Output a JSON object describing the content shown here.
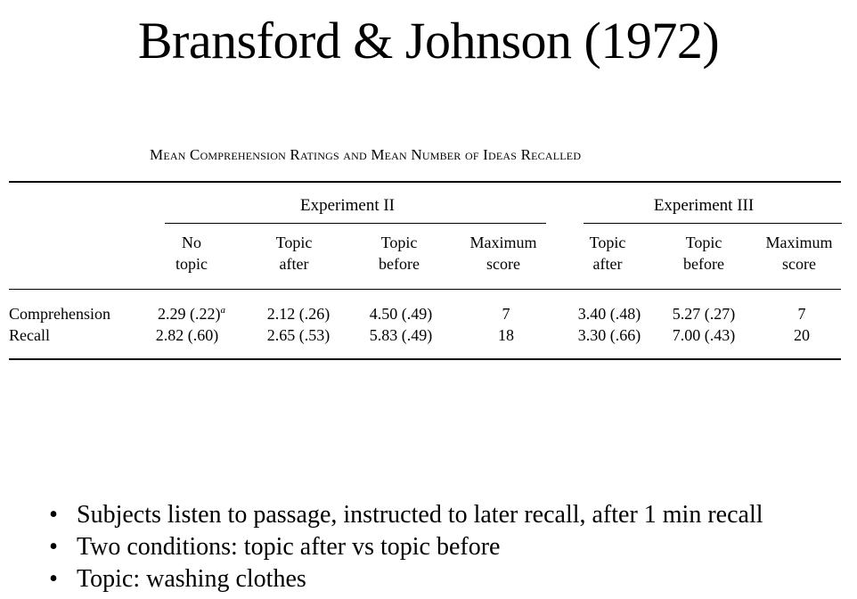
{
  "slide": {
    "title": "Bransford & Johnson (1972)"
  },
  "table": {
    "caption": "Mean Comprehension Ratings and Mean Number of Ideas Recalled",
    "groups": [
      {
        "label": "Experiment II"
      },
      {
        "label": "Experiment III"
      }
    ],
    "columns": [
      {
        "line1": "No",
        "line2": "topic"
      },
      {
        "line1": "Topic",
        "line2": "after"
      },
      {
        "line1": "Topic",
        "line2": "before"
      },
      {
        "line1": "Maximum",
        "line2": "score"
      },
      {
        "line1": "Topic",
        "line2": "after"
      },
      {
        "line1": "Topic",
        "line2": "before"
      },
      {
        "line1": "Maximum",
        "line2": "score"
      }
    ],
    "rows": [
      {
        "label": "Comprehension",
        "cells": [
          "2.29 (.22)",
          "2.12 (.26)",
          "4.50 (.49)",
          "7",
          "3.40 (.48)",
          "5.27 (.27)",
          "7"
        ]
      },
      {
        "label": "Recall",
        "cells": [
          "2.82 (.60)",
          "2.65 (.53)",
          "5.83 (.49)",
          "18",
          "3.30 (.66)",
          "7.00 (.43)",
          "20"
        ]
      }
    ],
    "footnote_marker": "a"
  },
  "bullets": [
    {
      "symbol": "•",
      "text": "Subjects listen to passage, instructed to later recall, after 1 min recall"
    },
    {
      "symbol": "•",
      "text": "Two conditions: topic after vs topic before"
    },
    {
      "symbol": "•",
      "text": "Topic: washing clothes"
    }
  ]
}
